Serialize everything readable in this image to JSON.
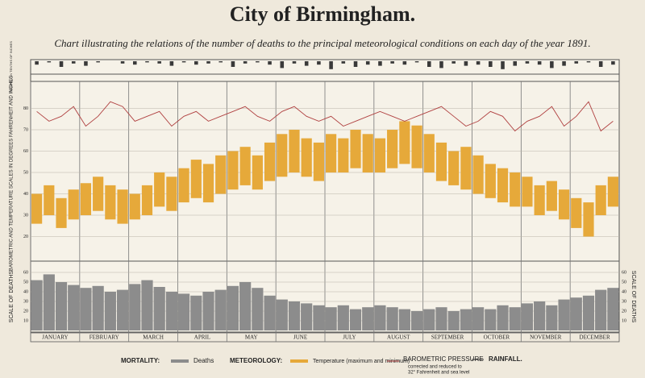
{
  "title": "City of Birmingham.",
  "subtitle": "Chart illustrating the relations of the number of deaths to the principal meteorological conditions on each day of the year 1891.",
  "months": [
    "JANUARY",
    "FEBRUARY",
    "MARCH",
    "APRIL",
    "MAY",
    "JUNE",
    "JULY",
    "AUGUST",
    "SEPTEMBER",
    "OCTOBER",
    "NOVEMBER",
    "DECEMBER"
  ],
  "side_labels": {
    "rainfall": "RAINFALL IN TENTHS OF INCHES",
    "temperature": "BAROMETRIC AND TEMPERATURE SCALES IN DEGREES FAHRENHEIT AND INCHES",
    "deaths": "SCALE OF DEATHS"
  },
  "legend": {
    "mortality": "MORTALITY:",
    "deaths": "Deaths",
    "meteorology": "METEOROLOGY:",
    "temperature": "Temperature (maximum and minimum)",
    "barometer": "BAROMETRIC PRESSURE",
    "barometer_note1": "corrected and reduced to",
    "barometer_note2": "32° Fahrenheit and sea level",
    "rainfall": "RAINFALL."
  },
  "chart_data": [
    {
      "type": "rain",
      "color": "#3a3a3a",
      "ylim": [
        0,
        1
      ],
      "values": [
        0.3,
        0.1,
        0.5,
        0.2,
        0.4,
        0.1,
        0.0,
        0.2,
        0.3,
        0.1,
        0.2,
        0.4,
        0.1,
        0.3,
        0.2,
        0.1,
        0.5,
        0.2,
        0.1,
        0.3,
        0.6,
        0.2,
        0.4,
        0.3,
        0.7,
        0.2,
        0.5,
        0.3,
        0.4,
        0.2,
        0.3,
        0.1,
        0.5,
        0.6,
        0.2,
        0.4,
        0.3,
        0.5,
        0.7,
        0.4,
        0.2,
        0.3,
        0.6,
        0.4,
        0.2,
        0.1,
        0.5,
        0.3
      ]
    },
    {
      "type": "range",
      "color": "#e6a93a",
      "ylim": [
        10,
        90
      ],
      "yticks": [
        20,
        30,
        40,
        50,
        60,
        70,
        80
      ],
      "high": [
        40,
        44,
        38,
        42,
        45,
        48,
        44,
        42,
        40,
        44,
        50,
        48,
        52,
        56,
        54,
        58,
        60,
        62,
        58,
        64,
        68,
        70,
        66,
        64,
        68,
        66,
        70,
        68,
        66,
        70,
        74,
        72,
        68,
        64,
        60,
        62,
        58,
        54,
        52,
        50,
        48,
        44,
        46,
        42,
        38,
        36,
        44,
        48
      ],
      "low": [
        26,
        30,
        24,
        28,
        30,
        32,
        28,
        26,
        28,
        30,
        34,
        32,
        36,
        38,
        36,
        40,
        42,
        44,
        42,
        46,
        48,
        50,
        48,
        46,
        50,
        50,
        52,
        50,
        50,
        52,
        54,
        52,
        50,
        46,
        44,
        42,
        40,
        38,
        36,
        34,
        34,
        30,
        32,
        28,
        24,
        20,
        30,
        34
      ],
      "line_color": "#b04040",
      "y2lim": [
        27.0,
        30.5
      ],
      "line": [
        30.0,
        29.8,
        29.9,
        30.1,
        29.7,
        29.9,
        30.2,
        30.1,
        29.8,
        29.9,
        30.0,
        29.7,
        29.9,
        30.0,
        29.8,
        29.9,
        30.0,
        30.1,
        29.9,
        29.8,
        30.0,
        30.1,
        29.9,
        29.8,
        29.9,
        29.7,
        29.8,
        29.9,
        30.0,
        29.9,
        29.8,
        29.9,
        30.0,
        30.1,
        29.9,
        29.7,
        29.8,
        30.0,
        29.9,
        29.6,
        29.8,
        29.9,
        30.1,
        29.7,
        29.9,
        30.2,
        29.6,
        29.8
      ]
    },
    {
      "type": "bar",
      "color": "#8c8c8c",
      "ylim": [
        0,
        70
      ],
      "yticks": [
        10,
        20,
        30,
        40,
        50,
        60
      ],
      "values": [
        52,
        58,
        50,
        47,
        44,
        46,
        40,
        42,
        48,
        52,
        45,
        40,
        38,
        36,
        40,
        42,
        46,
        50,
        44,
        36,
        32,
        30,
        28,
        26,
        24,
        26,
        22,
        24,
        26,
        24,
        22,
        20,
        22,
        24,
        20,
        22,
        24,
        22,
        26,
        24,
        28,
        30,
        26,
        32,
        34,
        36,
        42,
        44
      ]
    }
  ]
}
